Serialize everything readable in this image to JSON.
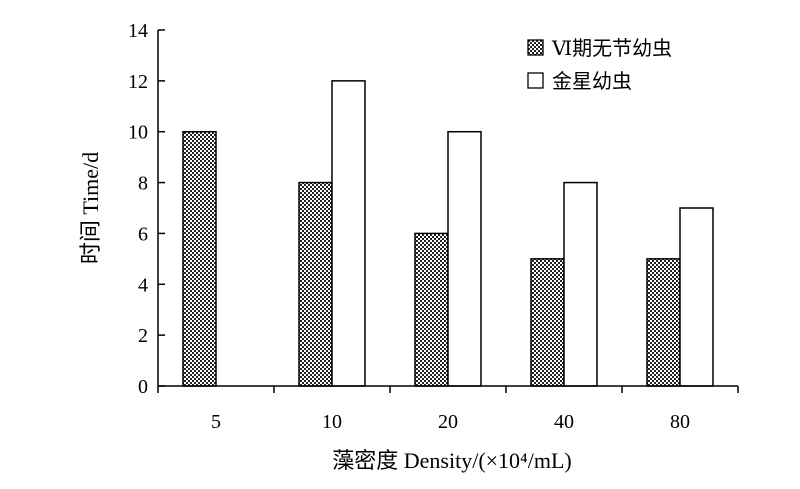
{
  "chart_data": {
    "type": "bar",
    "categories": [
      "5",
      "10",
      "20",
      "40",
      "80"
    ],
    "series": [
      {
        "name": "Ⅵ期无节幼虫",
        "values": [
          10,
          8,
          6,
          5,
          5
        ],
        "fill": "checkered"
      },
      {
        "name": "金星幼虫",
        "values": [
          null,
          12,
          10,
          8,
          7
        ],
        "fill": "white"
      }
    ],
    "title": "",
    "xlabel": "藻密度 Density/(×10⁴/mL)",
    "ylabel": "时间 Time/d",
    "ylim": [
      0,
      14
    ],
    "yticks": [
      0,
      2,
      4,
      6,
      8,
      10,
      12,
      14
    ],
    "grid": false,
    "legend": "top-right"
  }
}
